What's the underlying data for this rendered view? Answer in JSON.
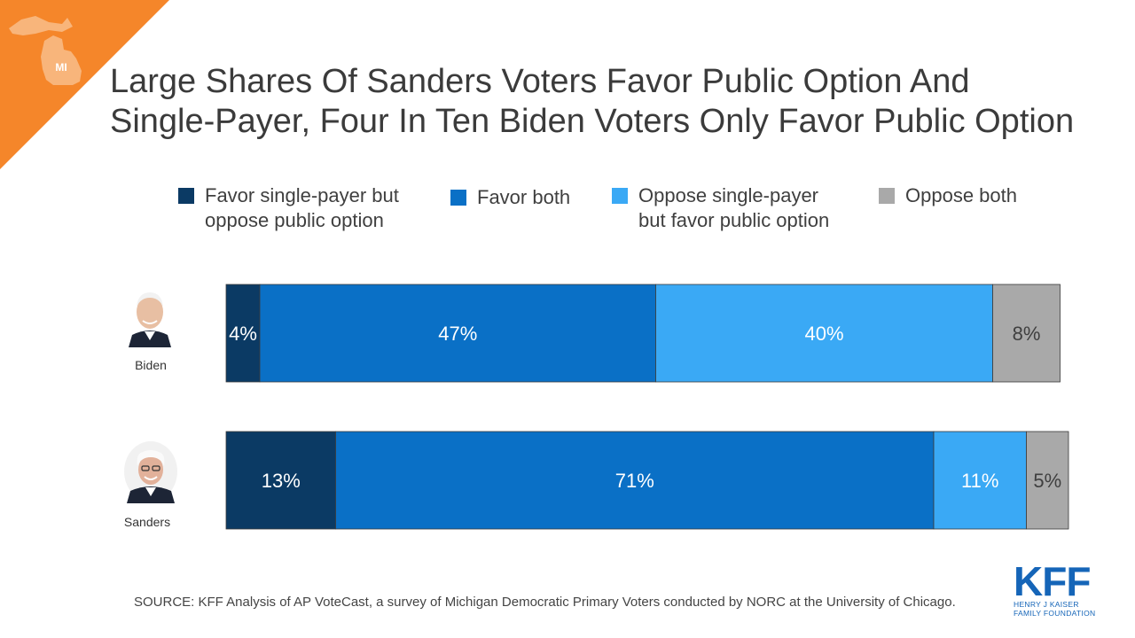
{
  "colors": {
    "corner": "#f5862a",
    "favor_single_payer_only": "#0b3a64",
    "favor_both": "#0a70c6",
    "oppose_sp_favor_po": "#3aa9f5",
    "oppose_both": "#a9a9a9",
    "logo": "#1565b8"
  },
  "state_badge": "MI",
  "title_line1": "Large Shares Of Sanders Voters Favor Public Option And",
  "title_line2": "Single-Payer,  Four In Ten Biden Voters Only Favor Public Option",
  "legend": {
    "item1_line1": "Favor single-payer but",
    "item1_line2": "oppose public option",
    "item2": "Favor both",
    "item3_line1": "Oppose single-payer",
    "item3_line2": "but favor public option",
    "item4": "Oppose both"
  },
  "chart_data": {
    "type": "bar",
    "orientation": "horizontal",
    "stacked": true,
    "categories": [
      "Biden",
      "Sanders"
    ],
    "series": [
      {
        "name": "Favor single-payer but oppose public option",
        "values": [
          4,
          13
        ],
        "labels": [
          "4%",
          "13%"
        ]
      },
      {
        "name": "Favor both",
        "values": [
          47,
          71
        ],
        "labels": [
          "47%",
          "71%"
        ]
      },
      {
        "name": "Oppose single-payer but favor public option",
        "values": [
          40,
          11
        ],
        "labels": [
          "40%",
          "11%"
        ]
      },
      {
        "name": "Oppose both",
        "values": [
          8,
          5
        ],
        "labels": [
          "8%",
          "5%"
        ]
      }
    ],
    "legend_position": "top",
    "grid": false
  },
  "candidates": {
    "biden": "Biden",
    "sanders": "Sanders"
  },
  "source": "SOURCE: KFF Analysis of AP VoteCast, a survey of Michigan Democratic Primary Voters conducted by NORC at the University  of Chicago.",
  "logo": {
    "name": "KFF",
    "line1": "HENRY J KAISER",
    "line2": "FAMILY FOUNDATION"
  }
}
